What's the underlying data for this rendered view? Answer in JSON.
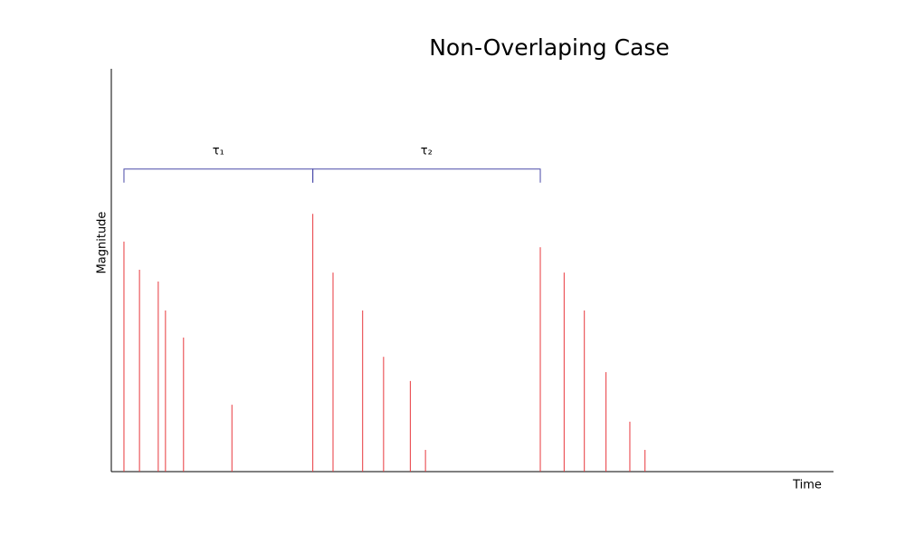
{
  "chart_data": {
    "type": "stem",
    "title": "Non-Overlaping Case",
    "x_label": "Time",
    "y_label": "Magnitude",
    "xlim": [
      0,
      100
    ],
    "ylim": [
      0,
      100
    ],
    "series": [
      {
        "color": "#e8383d",
        "x": [
          1.75,
          3.9,
          6.5,
          7.5,
          10.0,
          16.7,
          27.9,
          30.7,
          34.8,
          37.7,
          41.4,
          43.5,
          59.4,
          62.7,
          65.5,
          68.5,
          71.8,
          73.9
        ],
        "values": [
          57.1,
          50.1,
          47.2,
          40.0,
          33.3,
          16.6,
          64.0,
          49.4,
          40.0,
          28.5,
          22.5,
          5.4,
          55.7,
          49.4,
          40.0,
          24.7,
          12.4,
          5.4
        ]
      }
    ],
    "annotations": [
      {
        "label": "τ₁",
        "start": 1.75,
        "end": 27.9,
        "level": 75.1
      },
      {
        "label": "τ₂",
        "start": 27.9,
        "end": 59.4,
        "level": 75.1
      }
    ],
    "annotation_color": "#4a4aa8"
  }
}
